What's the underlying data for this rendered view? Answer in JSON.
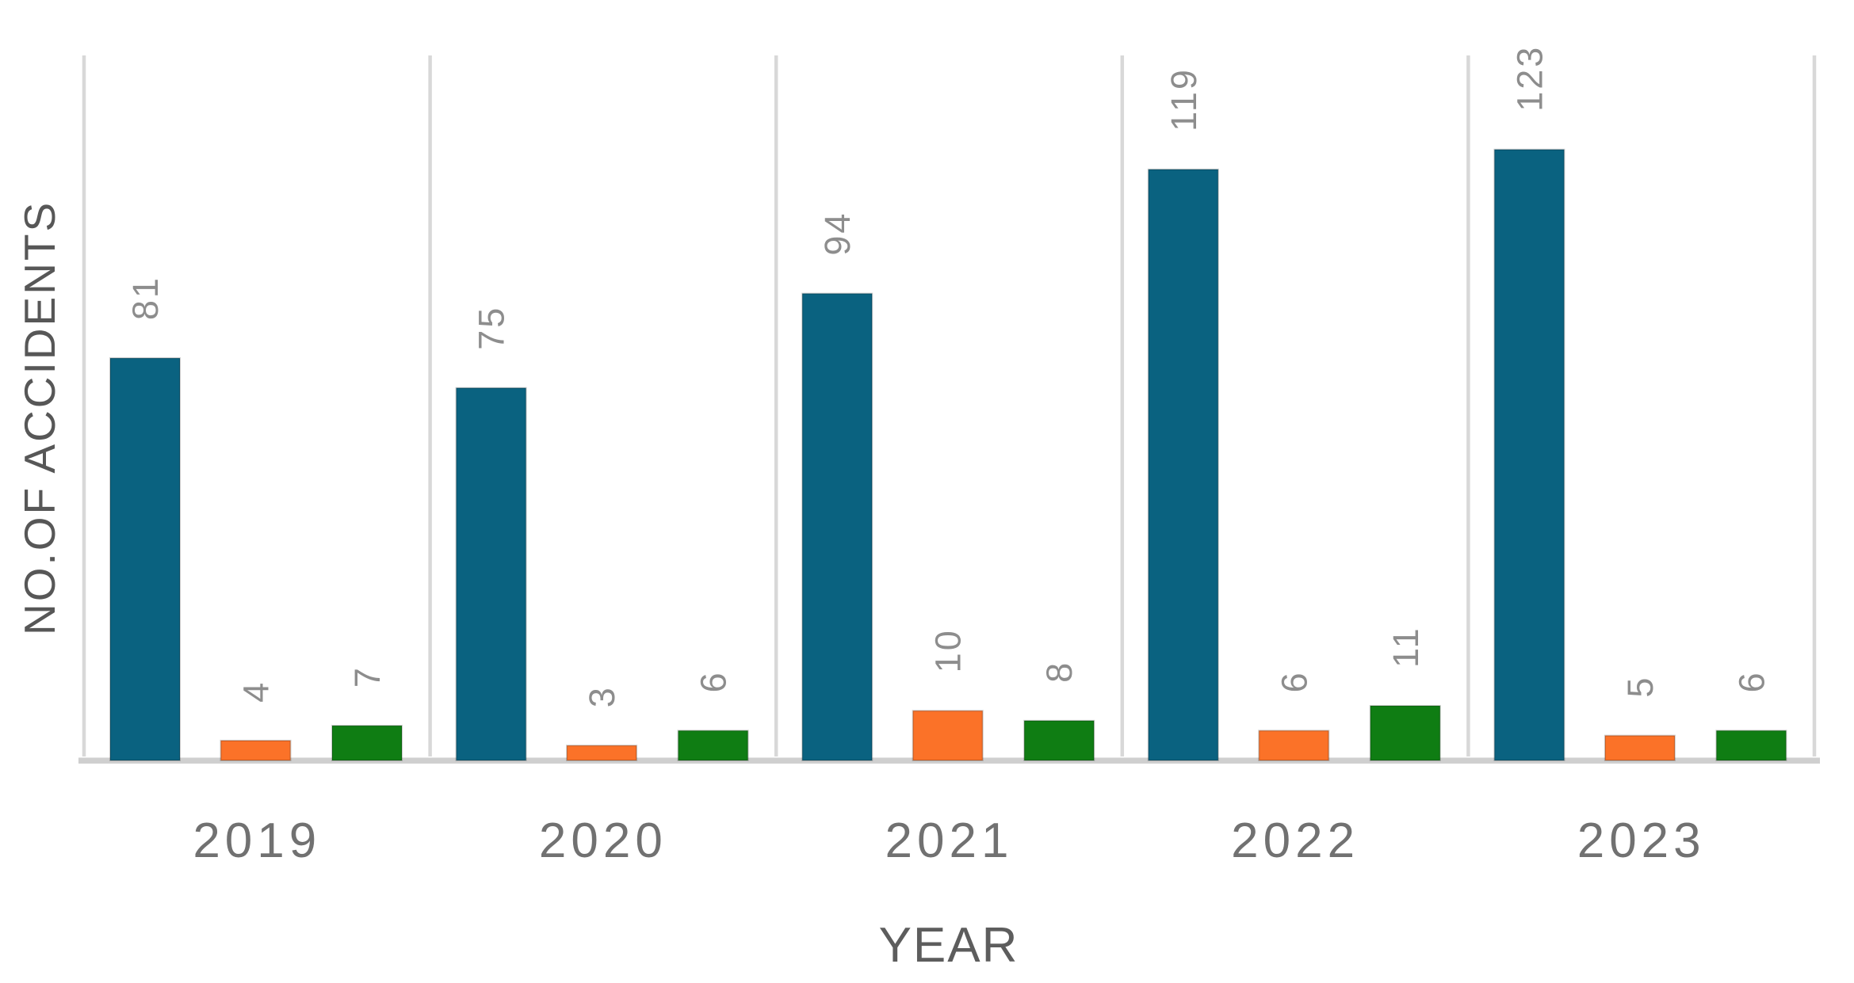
{
  "page": {
    "background": "#ffffff"
  },
  "chart_data": {
    "type": "bar",
    "title": "",
    "xlabel": "YEAR",
    "ylabel": "NO.OF ACCIDENTS",
    "categories": [
      "2019",
      "2020",
      "2021",
      "2022",
      "2023"
    ],
    "series": [
      {
        "name": "blue",
        "color": "#0a6280",
        "values": [
          81,
          75,
          94,
          119,
          123
        ]
      },
      {
        "name": "orange",
        "color": "#fb7228",
        "values": [
          4,
          3,
          10,
          6,
          5
        ]
      },
      {
        "name": "green",
        "color": "#0f7d13",
        "values": [
          7,
          6,
          8,
          11,
          6
        ]
      }
    ],
    "bar_value_labels": {
      "visible": true,
      "rotation_deg": 90,
      "values_by_category": {
        "2019": [
          81,
          4,
          7
        ],
        "2020": [
          75,
          3,
          6
        ],
        "2021": [
          94,
          10,
          8
        ],
        "2022": [
          119,
          6,
          11
        ],
        "2023": [
          123,
          5,
          6
        ]
      }
    },
    "legend": "none",
    "grid": "vertical-category-separators",
    "y_ticks_visible": false,
    "ylim": [
      0,
      142
    ]
  },
  "styles": {
    "value_label_color": "#8d8d8d",
    "year_label_color": "#717171",
    "axis_title_color": "#5d5d5d",
    "ylabel_color": "#575757",
    "gridline_color": "#d8d8d8",
    "axis_line_color": "#cfcfcf",
    "bar_edge_color": "rgba(0,0,0,0.2)"
  }
}
